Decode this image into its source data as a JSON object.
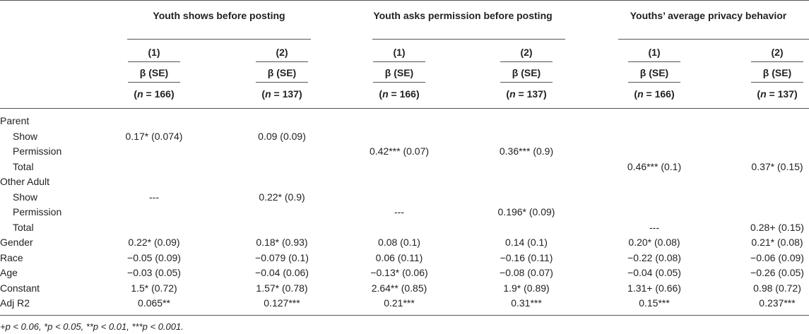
{
  "groups": [
    {
      "title": "Youth shows before posting"
    },
    {
      "title": "Youth asks permission before posting"
    },
    {
      "title": "Youths’ average privacy behavior"
    }
  ],
  "model_labels": [
    "(1)",
    "(2)"
  ],
  "beta_label": "β (SE)",
  "n_prefix": "(",
  "n_var": "n",
  "n_values": [
    " = 166)",
    " = 137)",
    " = 166)",
    " = 137)",
    " = 166)",
    " = 137)"
  ],
  "rows": [
    {
      "label": "Parent",
      "indent": false,
      "cells": [
        "",
        "",
        "",
        "",
        "",
        ""
      ]
    },
    {
      "label": "Show",
      "indent": true,
      "cells": [
        "0.17* (0.074)",
        "0.09 (0.09)",
        "",
        "",
        "",
        ""
      ]
    },
    {
      "label": "Permission",
      "indent": true,
      "cells": [
        "",
        "",
        "0.42*** (0.07)",
        "0.36*** (0.9)",
        "",
        ""
      ]
    },
    {
      "label": "Total",
      "indent": true,
      "cells": [
        "",
        "",
        "",
        "",
        "0.46*** (0.1)",
        "0.37* (0.15)"
      ]
    },
    {
      "label": "Other Adult",
      "indent": false,
      "cells": [
        "",
        "",
        "",
        "",
        "",
        ""
      ]
    },
    {
      "label": "Show",
      "indent": true,
      "cells": [
        "---",
        "0.22* (0.9)",
        "",
        "",
        "",
        ""
      ]
    },
    {
      "label": "Permission",
      "indent": true,
      "cells": [
        "",
        "",
        "---",
        "0.196* (0.09)",
        "",
        ""
      ]
    },
    {
      "label": "Total",
      "indent": true,
      "cells": [
        "",
        "",
        "",
        "",
        "---",
        "0.28+ (0.15)"
      ]
    },
    {
      "label": "Gender",
      "indent": false,
      "cells": [
        "0.22* (0.09)",
        "0.18* (0.93)",
        "0.08 (0.1)",
        "0.14 (0.1)",
        "0.20* (0.08)",
        "0.21* (0.08)"
      ]
    },
    {
      "label": "Race",
      "indent": false,
      "cells": [
        "−0.05 (0.09)",
        "−0.079 (0.1)",
        "0.06 (0.11)",
        "−0.16 (0.11)",
        "−0.22 (0.08)",
        "−0.06 (0.09)"
      ]
    },
    {
      "label": "Age",
      "indent": false,
      "cells": [
        "−0.03 (0.05)",
        "−0.04 (0.06)",
        "−0.13* (0.06)",
        "−0.08 (0.07)",
        "−0.04 (0.05)",
        "−0.26 (0.05)"
      ]
    },
    {
      "label": "Constant",
      "indent": false,
      "cells": [
        "1.5* (0.72)",
        "1.57* (0.78)",
        "2.64** (0.85)",
        "1.9* (0.89)",
        "1.31+ (0.66)",
        "0.98 (0.72)"
      ]
    },
    {
      "label": "Adj R2",
      "indent": false,
      "cells": [
        "0.065**",
        "0.127***",
        "0.21***",
        "0.31***",
        "0.15***",
        "0.237***"
      ]
    }
  ],
  "footnote": "+p < 0.06, *p < 0.05, **p < 0.01, ***p < 0.001."
}
